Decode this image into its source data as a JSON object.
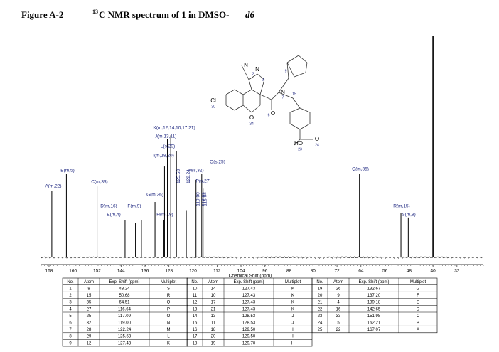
{
  "header": {
    "figure_label": "Figure A-2",
    "caption_sup": "13",
    "caption": "C NMR spectrum of 1 in DMSO-",
    "caption_italic": "d6"
  },
  "structure": {
    "labels": [
      "Cl",
      "30",
      "N",
      "N",
      "2",
      "3",
      "N",
      "7",
      "O",
      "6",
      "O",
      "34",
      "9",
      "15",
      "HO",
      "O",
      "23",
      "24"
    ]
  },
  "chart_data": {
    "type": "nmr",
    "xlabel": "Chemical Shift (ppm)",
    "xlim": [
      170.6,
      23.2
    ],
    "xticks": [
      168,
      160,
      152,
      144,
      136,
      128,
      120,
      112,
      104,
      96,
      88,
      80,
      72,
      64,
      56,
      48,
      40,
      32
    ],
    "peaks": {
      "ppm": [
        167.07,
        162.21,
        151.98,
        142.65,
        139.18,
        137.2,
        132.67,
        129.7,
        129.5,
        128.53,
        127.43,
        125.53,
        122.24,
        119.0,
        117.09,
        116.64,
        64.51,
        50.68,
        48.24,
        40
      ],
      "intensity": [
        30,
        37.5,
        32,
        16.7,
        15.7,
        16.7,
        25,
        17,
        41,
        53.5,
        55,
        48,
        21,
        35,
        37.5,
        31,
        37.5,
        20,
        18,
        100
      ],
      "labels": [
        "A(m,22)",
        "B(m,5)",
        "C(m,33)",
        "D(m,16)",
        "E(m,4)",
        "F(m,9)",
        "G(m,26)",
        "H(m,19)",
        "I(m,18,20)",
        "J(m,13,11)",
        "K(m,12,14,10,17,21)",
        "L(s,29)",
        null,
        "N(s,32)",
        "O(s,25)",
        "P(s,27)",
        "Q(m,35)",
        "R(m,15)",
        "S(m,8)",
        null
      ]
    },
    "shift_labels": [
      {
        "value": 125.53,
        "label": "125.53"
      },
      {
        "value": 122.24,
        "label": "122.24"
      },
      {
        "value": 119.0,
        "label": "119.00"
      },
      {
        "value": 117.09,
        "label": "117.09"
      },
      {
        "value": 116.64,
        "label": "116.64"
      }
    ]
  },
  "table": {
    "header": [
      "No.",
      "Atom",
      "Exp. Shift (ppm)",
      "Multiplet"
    ],
    "groups": [
      [
        [
          "1",
          "8",
          "48.24",
          "S"
        ],
        [
          "2",
          "15",
          "50.68",
          "R"
        ],
        [
          "3",
          "35",
          "64.51",
          "Q"
        ],
        [
          "4",
          "27",
          "116.64",
          "P"
        ],
        [
          "5",
          "25",
          "117.09",
          "O"
        ],
        [
          "6",
          "32",
          "119.00",
          "N"
        ],
        [
          "7",
          "28",
          "122.24",
          "M"
        ],
        [
          "8",
          "29",
          "125.53",
          "L"
        ],
        [
          "9",
          "12",
          "127.43",
          "K"
        ]
      ],
      [
        [
          "10",
          "14",
          "127.43",
          "K"
        ],
        [
          "11",
          "10",
          "127.43",
          "K"
        ],
        [
          "12",
          "17",
          "127.43",
          "K"
        ],
        [
          "13",
          "21",
          "127.43",
          "K"
        ],
        [
          "14",
          "13",
          "128.53",
          "J"
        ],
        [
          "15",
          "11",
          "128.53",
          "J"
        ],
        [
          "16",
          "18",
          "129.50",
          "I"
        ],
        [
          "17",
          "20",
          "129.50",
          "I"
        ],
        [
          "18",
          "19",
          "129.70",
          "H"
        ]
      ],
      [
        [
          "19",
          "26",
          "132.67",
          "G"
        ],
        [
          "20",
          "9",
          "137.20",
          "F"
        ],
        [
          "21",
          "4",
          "139.18",
          "E"
        ],
        [
          "22",
          "16",
          "142.65",
          "D"
        ],
        [
          "23",
          "33",
          "151.98",
          "C"
        ],
        [
          "24",
          "5",
          "162.21",
          "B"
        ],
        [
          "25",
          "22",
          "167.07",
          "A"
        ]
      ]
    ]
  }
}
